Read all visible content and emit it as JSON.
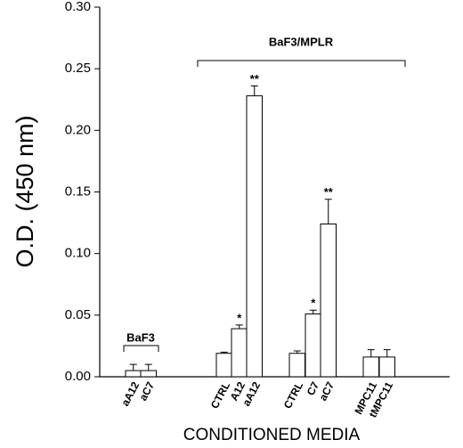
{
  "chart_data": {
    "type": "bar",
    "y_label": "O.D. (450 nm)",
    "x_label": "CONDITIONED MEDIA",
    "categories": [
      "aA12",
      "aC7",
      "CTRL",
      "A12",
      "aA12",
      "CTRL",
      "C7",
      "aC7",
      "MPC11",
      "tMPC11"
    ],
    "values": [
      0.005,
      0.005,
      0.019,
      0.039,
      0.228,
      0.019,
      0.051,
      0.124,
      0.016,
      0.016
    ],
    "errors": [
      0.005,
      0.005,
      0.001,
      0.003,
      0.008,
      0.002,
      0.003,
      0.02,
      0.006,
      0.006
    ],
    "significance": [
      null,
      null,
      null,
      "*",
      "**",
      null,
      "*",
      "**",
      null,
      null
    ],
    "groups": [
      "BaF3",
      "BaF3/MPLR"
    ],
    "color": "#ffffff",
    "ylim": [
      0,
      0.3
    ],
    "yticks": [
      {
        "value": 0,
        "label": "0.00"
      },
      {
        "value": 0.05,
        "label": "0.05"
      },
      {
        "value": 0.1,
        "label": "0.10"
      },
      {
        "value": 0.15,
        "label": "0.15"
      },
      {
        "value": 0.2,
        "label": "0.20"
      },
      {
        "value": 0.25,
        "label": "0.25"
      },
      {
        "value": 0.3,
        "label": "0.30"
      }
    ]
  }
}
